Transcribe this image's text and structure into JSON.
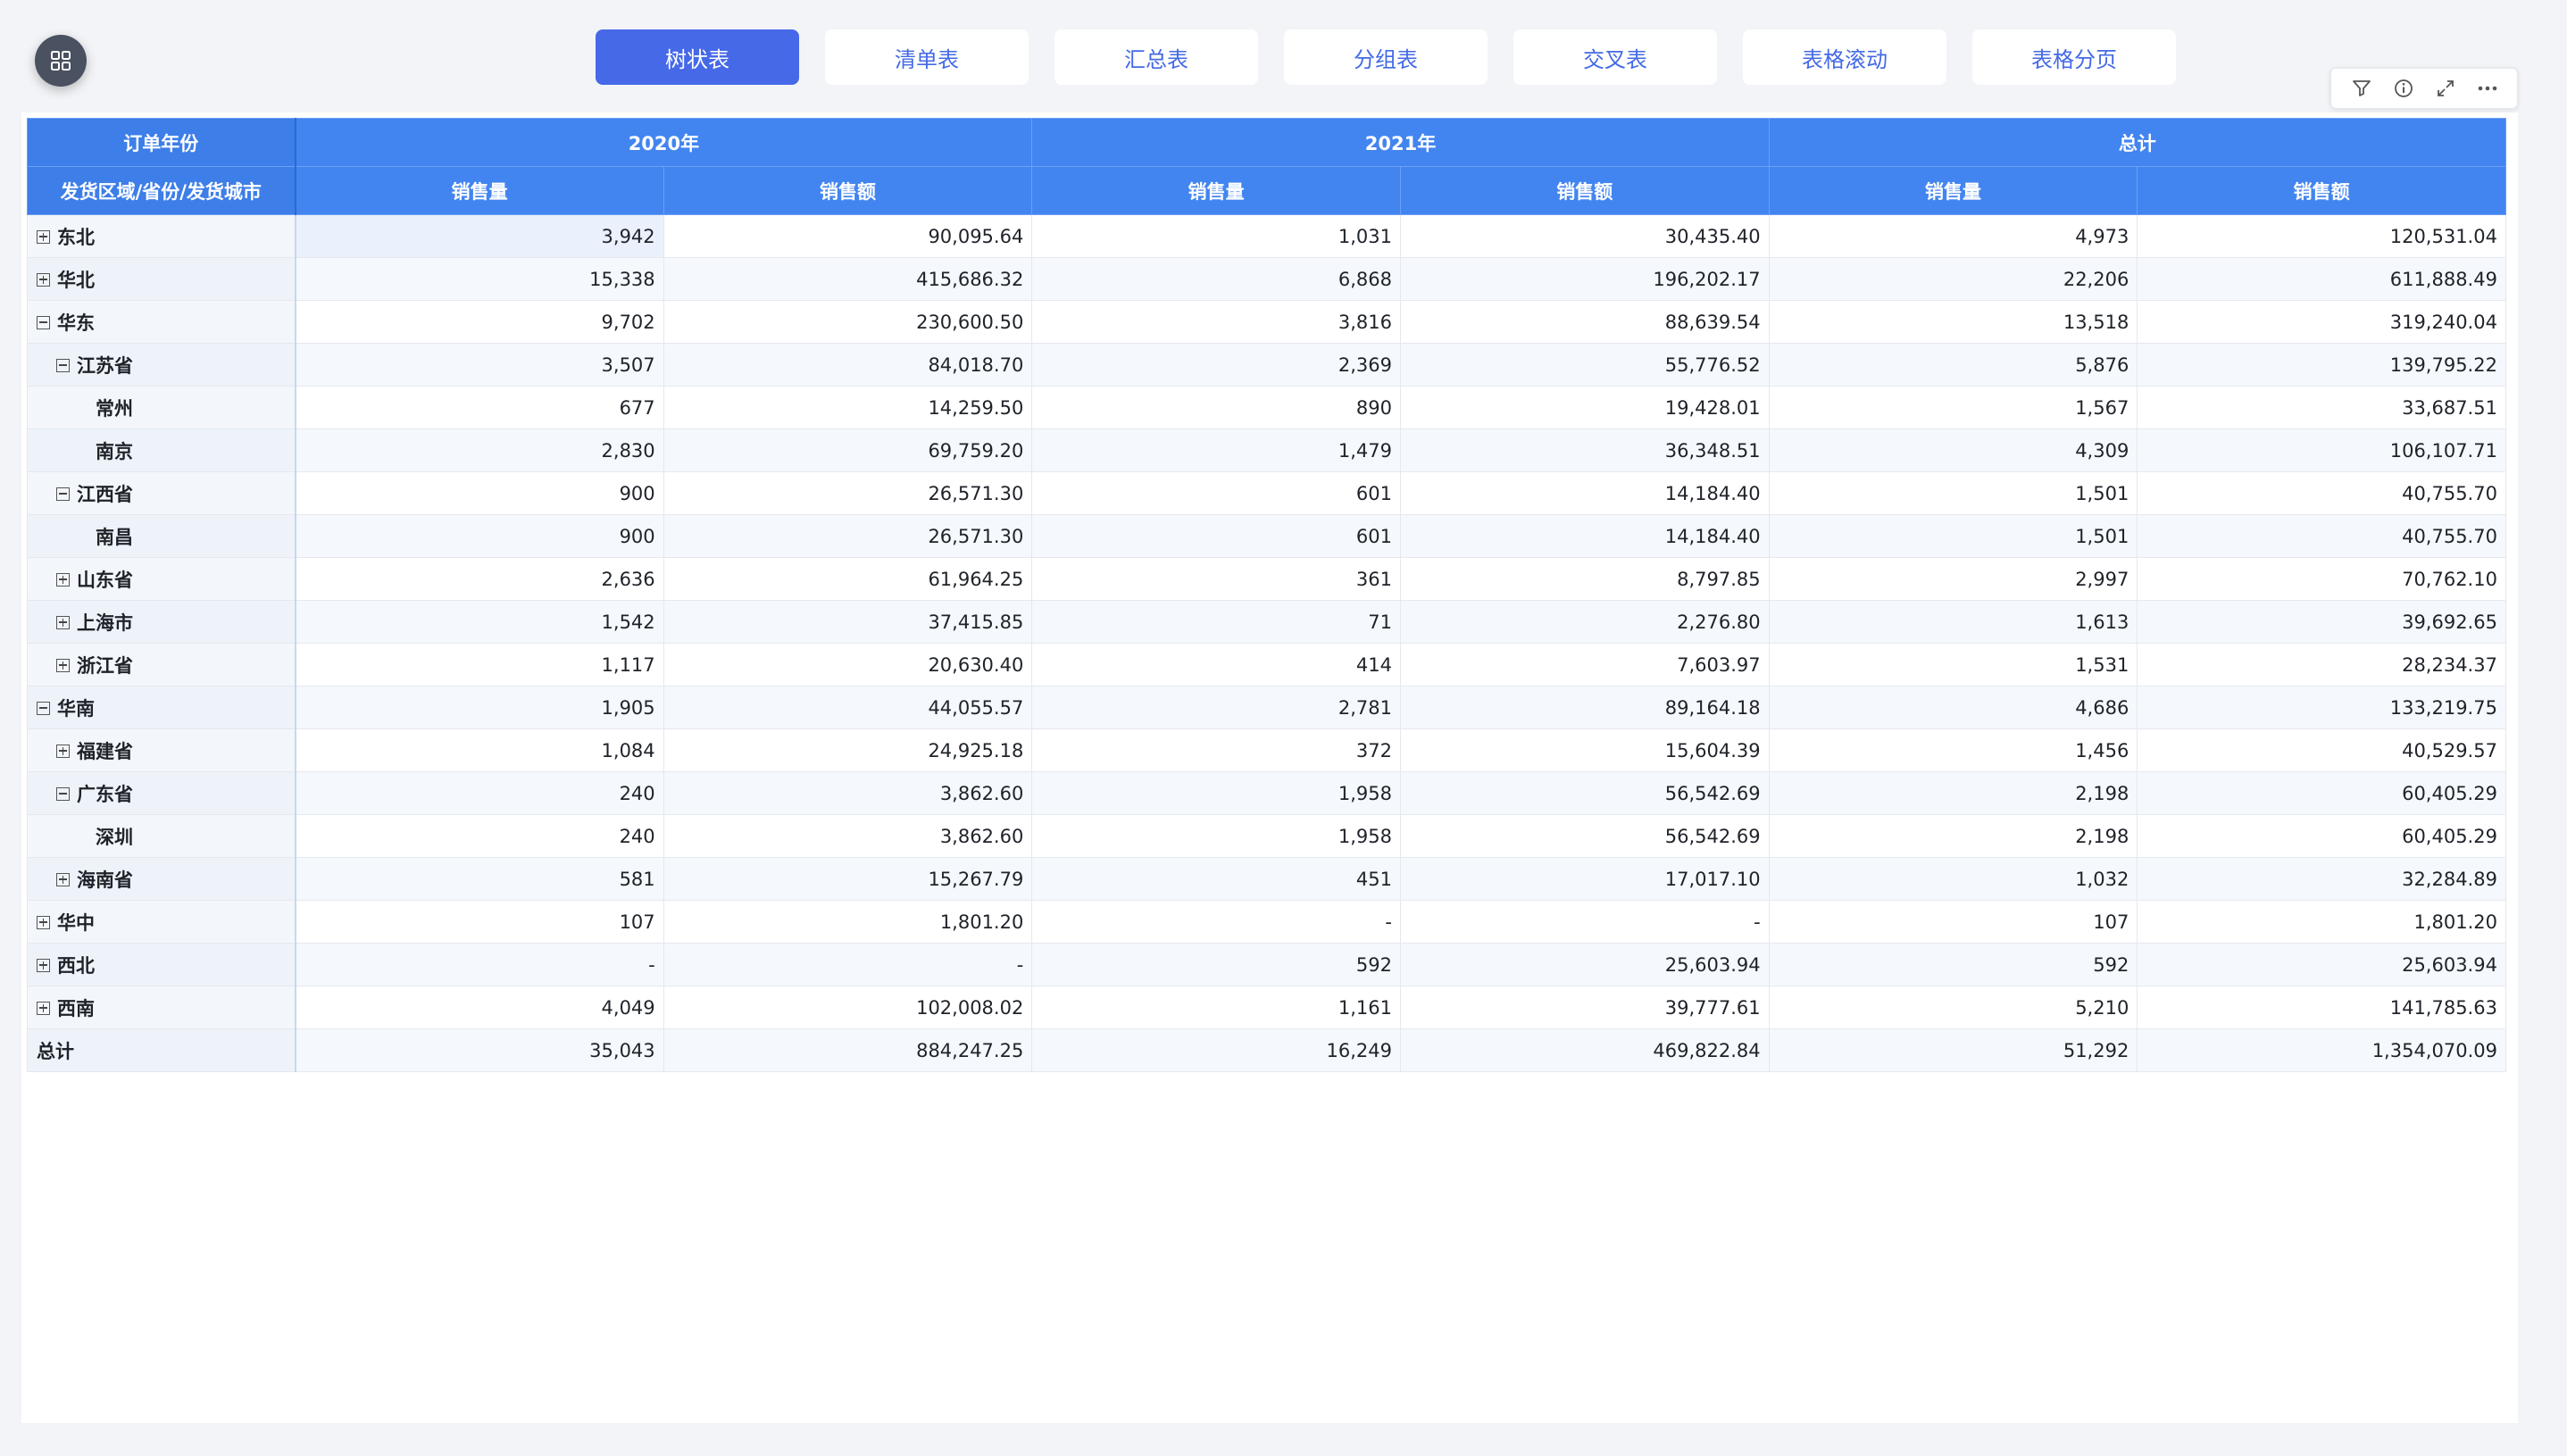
{
  "tabs": [
    {
      "label": "树状表",
      "active": true
    },
    {
      "label": "清单表",
      "active": false
    },
    {
      "label": "汇总表",
      "active": false
    },
    {
      "label": "分组表",
      "active": false
    },
    {
      "label": "交叉表",
      "active": false
    },
    {
      "label": "表格滚动",
      "active": false
    },
    {
      "label": "表格分页",
      "active": false
    }
  ],
  "toolbar": {
    "icons": [
      "filter-icon",
      "info-icon",
      "expand-icon",
      "more-icon"
    ]
  },
  "table": {
    "header": {
      "corner_top": "订单年份",
      "corner_bottom": "发货区域/省份/发货城市",
      "groups": [
        "2020年",
        "2021年",
        "总计"
      ],
      "measures": [
        "销售量",
        "销售额"
      ]
    },
    "rows": [
      {
        "label": "东北",
        "level": 0,
        "toggle": "plus",
        "values": [
          "3,942",
          "90,095.64",
          "1,031",
          "30,435.40",
          "4,973",
          "120,531.04"
        ]
      },
      {
        "label": "华北",
        "level": 0,
        "toggle": "plus",
        "values": [
          "15,338",
          "415,686.32",
          "6,868",
          "196,202.17",
          "22,206",
          "611,888.49"
        ]
      },
      {
        "label": "华东",
        "level": 0,
        "toggle": "minus",
        "values": [
          "9,702",
          "230,600.50",
          "3,816",
          "88,639.54",
          "13,518",
          "319,240.04"
        ]
      },
      {
        "label": "江苏省",
        "level": 1,
        "toggle": "minus",
        "values": [
          "3,507",
          "84,018.70",
          "2,369",
          "55,776.52",
          "5,876",
          "139,795.22"
        ]
      },
      {
        "label": "常州",
        "level": 2,
        "toggle": "none",
        "values": [
          "677",
          "14,259.50",
          "890",
          "19,428.01",
          "1,567",
          "33,687.51"
        ]
      },
      {
        "label": "南京",
        "level": 2,
        "toggle": "none",
        "values": [
          "2,830",
          "69,759.20",
          "1,479",
          "36,348.51",
          "4,309",
          "106,107.71"
        ]
      },
      {
        "label": "江西省",
        "level": 1,
        "toggle": "minus",
        "values": [
          "900",
          "26,571.30",
          "601",
          "14,184.40",
          "1,501",
          "40,755.70"
        ]
      },
      {
        "label": "南昌",
        "level": 2,
        "toggle": "none",
        "values": [
          "900",
          "26,571.30",
          "601",
          "14,184.40",
          "1,501",
          "40,755.70"
        ]
      },
      {
        "label": "山东省",
        "level": 1,
        "toggle": "plus",
        "values": [
          "2,636",
          "61,964.25",
          "361",
          "8,797.85",
          "2,997",
          "70,762.10"
        ]
      },
      {
        "label": "上海市",
        "level": 1,
        "toggle": "plus",
        "values": [
          "1,542",
          "37,415.85",
          "71",
          "2,276.80",
          "1,613",
          "39,692.65"
        ]
      },
      {
        "label": "浙江省",
        "level": 1,
        "toggle": "plus",
        "values": [
          "1,117",
          "20,630.40",
          "414",
          "7,603.97",
          "1,531",
          "28,234.37"
        ]
      },
      {
        "label": "华南",
        "level": 0,
        "toggle": "minus",
        "values": [
          "1,905",
          "44,055.57",
          "2,781",
          "89,164.18",
          "4,686",
          "133,219.75"
        ]
      },
      {
        "label": "福建省",
        "level": 1,
        "toggle": "plus",
        "values": [
          "1,084",
          "24,925.18",
          "372",
          "15,604.39",
          "1,456",
          "40,529.57"
        ]
      },
      {
        "label": "广东省",
        "level": 1,
        "toggle": "minus",
        "values": [
          "240",
          "3,862.60",
          "1,958",
          "56,542.69",
          "2,198",
          "60,405.29"
        ]
      },
      {
        "label": "深圳",
        "level": 2,
        "toggle": "none",
        "values": [
          "240",
          "3,862.60",
          "1,958",
          "56,542.69",
          "2,198",
          "60,405.29"
        ]
      },
      {
        "label": "海南省",
        "level": 1,
        "toggle": "plus",
        "values": [
          "581",
          "15,267.79",
          "451",
          "17,017.10",
          "1,032",
          "32,284.89"
        ]
      },
      {
        "label": "华中",
        "level": 0,
        "toggle": "plus",
        "values": [
          "107",
          "1,801.20",
          "-",
          "-",
          "107",
          "1,801.20"
        ]
      },
      {
        "label": "西北",
        "level": 0,
        "toggle": "plus",
        "values": [
          "-",
          "-",
          "592",
          "25,603.94",
          "592",
          "25,603.94"
        ]
      },
      {
        "label": "西南",
        "level": 0,
        "toggle": "plus",
        "values": [
          "4,049",
          "102,008.02",
          "1,161",
          "39,777.61",
          "5,210",
          "141,785.63"
        ]
      },
      {
        "label": "总计",
        "level": 0,
        "toggle": "none",
        "values": [
          "35,043",
          "884,247.25",
          "16,249",
          "469,822.84",
          "51,292",
          "1,354,070.09"
        ]
      }
    ]
  }
}
